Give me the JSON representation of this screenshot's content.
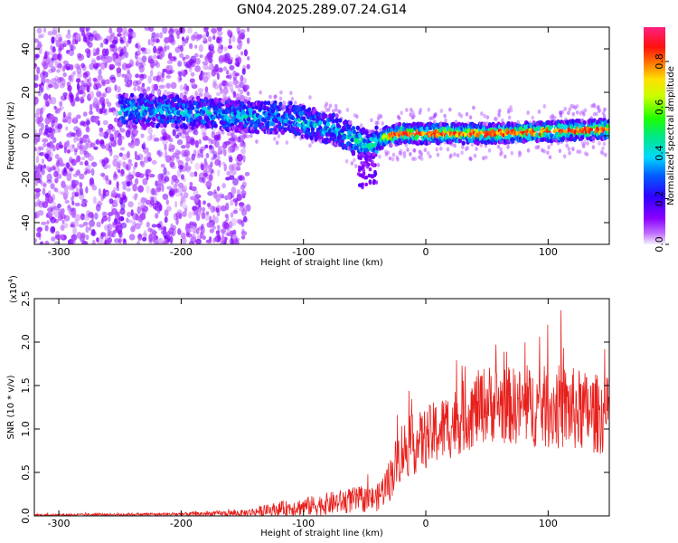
{
  "title": "GN04.2025.289.07.24.G14",
  "chart_data": [
    {
      "type": "heatmap",
      "xlabel": "Height of straight line (km)",
      "ylabel": "Frequency (Hz)",
      "xlim": [
        -320,
        150
      ],
      "ylim": [
        -50,
        50
      ],
      "x_ticks": [
        -300,
        -200,
        -100,
        0,
        100
      ],
      "x_tick_labels": [
        "-300",
        "-200",
        "-100",
        "0",
        "100"
      ],
      "y_ticks": [
        -40,
        -20,
        0,
        20,
        40
      ],
      "y_tick_labels": [
        "-40",
        "-20",
        "0",
        "20",
        "40"
      ],
      "colorbar": {
        "label": "Normalized spectral amplitude",
        "range": [
          0,
          0.95
        ],
        "ticks": [
          0.0,
          0.2,
          0.4,
          0.6,
          0.8
        ],
        "tick_labels": [
          "0.0",
          "0.2",
          "0.4",
          "0.6",
          "0.8"
        ],
        "colormap": "rainbow (magenta-blue-cyan-green-yellow-red-pink)"
      },
      "signal_band_centerline": [
        {
          "x": -250,
          "y": 12
        },
        {
          "x": -200,
          "y": 11
        },
        {
          "x": -150,
          "y": 9
        },
        {
          "x": -110,
          "y": 8
        },
        {
          "x": -90,
          "y": 5
        },
        {
          "x": -70,
          "y": 2
        },
        {
          "x": -55,
          "y": -3
        },
        {
          "x": -45,
          "y": -5
        },
        {
          "x": -35,
          "y": -1
        },
        {
          "x": -20,
          "y": 1
        },
        {
          "x": 0,
          "y": 1
        },
        {
          "x": 50,
          "y": 1
        },
        {
          "x": 100,
          "y": 2
        },
        {
          "x": 150,
          "y": 3
        }
      ],
      "grid": false
    },
    {
      "type": "line",
      "xlabel": "Height of straight line (km)",
      "ylabel": "SNR (10 * v/v)",
      "y_multiplier_label": "(x10",
      "y_multiplier_exp": "4",
      "y_multiplier_close": ")",
      "xlim": [
        -320,
        150
      ],
      "ylim": [
        0,
        2.5
      ],
      "x_ticks": [
        -300,
        -200,
        -100,
        0,
        100
      ],
      "x_tick_labels": [
        "-300",
        "-200",
        "-100",
        "0",
        "100"
      ],
      "y_ticks": [
        0,
        0.5,
        1.0,
        1.5,
        2.0,
        2.5
      ],
      "y_tick_labels": [
        "0.0",
        "0.5",
        "1.0",
        "1.5",
        "2.0",
        "2.5"
      ],
      "series": [
        {
          "color": "#e8201c",
          "envelope": [
            {
              "x": -320,
              "mean": 0.01,
              "spread": 0.01
            },
            {
              "x": -200,
              "mean": 0.02,
              "spread": 0.02
            },
            {
              "x": -150,
              "mean": 0.03,
              "spread": 0.04
            },
            {
              "x": -120,
              "mean": 0.08,
              "spread": 0.08
            },
            {
              "x": -90,
              "mean": 0.12,
              "spread": 0.12
            },
            {
              "x": -60,
              "mean": 0.18,
              "spread": 0.15
            },
            {
              "x": -40,
              "mean": 0.2,
              "spread": 0.15
            },
            {
              "x": -30,
              "mean": 0.4,
              "spread": 0.25
            },
            {
              "x": -20,
              "mean": 0.75,
              "spread": 0.35
            },
            {
              "x": -5,
              "mean": 0.85,
              "spread": 0.35
            },
            {
              "x": 20,
              "mean": 1.05,
              "spread": 0.4
            },
            {
              "x": 50,
              "mean": 1.3,
              "spread": 0.45
            },
            {
              "x": 80,
              "mean": 1.25,
              "spread": 0.45
            },
            {
              "x": 110,
              "mean": 1.25,
              "spread": 0.5
            },
            {
              "x": 150,
              "mean": 1.15,
              "spread": 0.45
            }
          ]
        }
      ],
      "grid": false
    }
  ]
}
